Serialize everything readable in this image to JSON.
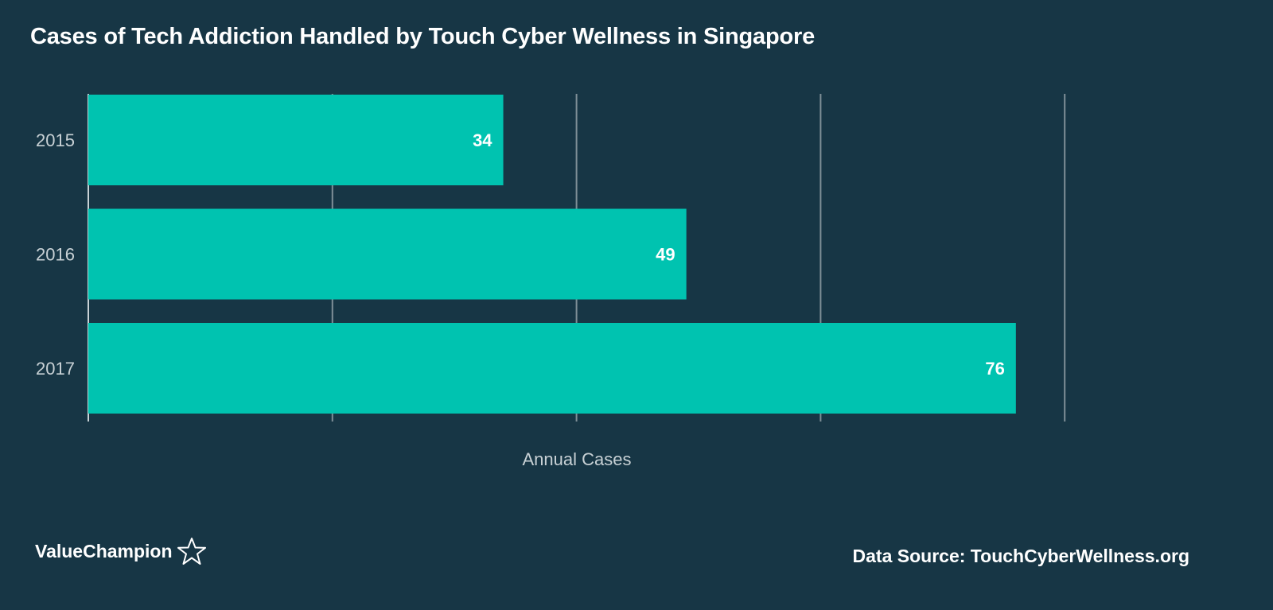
{
  "title": "Cases of Tech Addiction Handled by Touch Cyber Wellness in Singapore",
  "footer": {
    "brand": "ValueChampion",
    "source": "Data Source: TouchCyberWellness.org"
  },
  "colors": {
    "background": "#173645",
    "bar": "#00c3b0",
    "grid": "#7f8f97",
    "text": "#ffffff",
    "muted_text": "#c8d1d5"
  },
  "chart_data": {
    "type": "bar",
    "orientation": "horizontal",
    "title": "Cases of Tech Addiction Handled by Touch Cyber Wellness in Singapore",
    "categories": [
      "2015",
      "2016",
      "2017"
    ],
    "values": [
      34,
      49,
      76
    ],
    "xlabel": "Annual Cases",
    "ylabel": "",
    "xlim": [
      0,
      80
    ],
    "grid": true,
    "data_labels": true
  }
}
